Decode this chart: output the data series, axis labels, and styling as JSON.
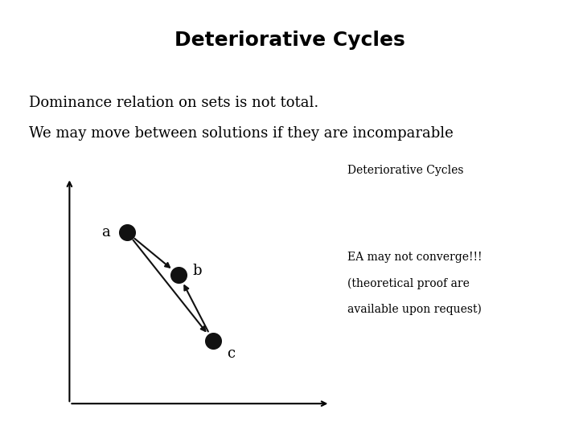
{
  "title": "Deteriorative Cycles",
  "title_fontsize": 18,
  "title_bold": true,
  "text_line1": "Dominance relation on sets is not total.",
  "text_line2": "We may move between solutions if they are incomparable",
  "text_fontsize": 13,
  "text_font": "serif",
  "diagram_label": "Deteriorative Cycles",
  "diagram_label_fontsize": 10,
  "diagram_label_font": "serif",
  "ea_text_line1": "EA may not converge!!!",
  "ea_text_line2": "(theoretical proof are",
  "ea_text_line3": "available upon request)",
  "ea_text_fontsize": 10,
  "ea_text_font": "serif",
  "background_color": "#ffffff",
  "point_a": [
    0.22,
    0.76
  ],
  "point_b": [
    0.42,
    0.57
  ],
  "point_c": [
    0.55,
    0.28
  ],
  "point_color": "#111111",
  "point_size": 200,
  "label_a": "a",
  "label_b": "b",
  "label_c": "c",
  "arrow_color": "#111111",
  "label_fontsize": 13,
  "label_font": "serif"
}
